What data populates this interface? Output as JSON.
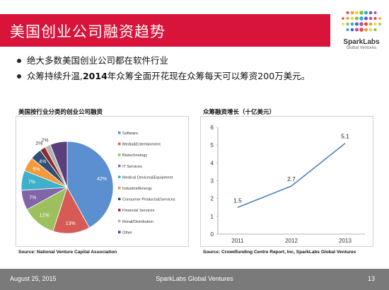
{
  "slide": {
    "title": "美国创业公司融资趋势",
    "logo": {
      "name": "SparkLabs",
      "sub": "Global Ventures",
      "icon": "sparklabs-dot-logo"
    },
    "bullets": [
      {
        "text": "绝大多数美国创业公司都在软件行业"
      },
      {
        "pre": "众筹持续升温,",
        "bold": "2014",
        "post": "年众筹全面开花现在众筹每天可以筹资200万美元。"
      }
    ],
    "footer": {
      "date": "August 25, 2015",
      "org": "SparkLabs Global Ventures",
      "page": "13"
    }
  },
  "chart_data": [
    {
      "type": "pie",
      "title": "美国按行业分类的创业公司融资",
      "source": "Source: National Venture Capital Association",
      "legend_position": "right",
      "slices": [
        {
          "name": "Software",
          "value": 42,
          "label": "42%",
          "color": "#5b8fcf"
        },
        {
          "name": "Media&Entertainment",
          "value": 13,
          "label": "13%",
          "color": "#d65a55"
        },
        {
          "name": "Biotechnology",
          "value": 12,
          "label": "12%",
          "color": "#9cc05e"
        },
        {
          "name": "IT Services",
          "value": 7,
          "label": "7%",
          "color": "#8066a9"
        },
        {
          "name": "Medical Devices&Equipment",
          "value": 7,
          "label": "7%",
          "color": "#3fb0c9"
        },
        {
          "name": "Industrial/Energy",
          "value": 5,
          "label": "5%",
          "color": "#f39a3d"
        },
        {
          "name": "Consumer Products&Services",
          "value": 4,
          "label": "4%",
          "color": "#2f4f78"
        },
        {
          "name": "Financial Services",
          "value": 2,
          "label": "2%",
          "color": "#8c2c2a"
        },
        {
          "name": "Retail/Distribution",
          "value": 2,
          "label": "2%",
          "color": "#b3b3b3"
        },
        {
          "name": "Other",
          "value": 6,
          "label": "",
          "color": "#5a3f7d"
        }
      ]
    },
    {
      "type": "line",
      "title": "众筹融资增长（十亿美元）",
      "source": "Source: Crowdfunding Centre Report, Inc, SparkLabs Global Ventures",
      "x": [
        "2011",
        "2012",
        "2013"
      ],
      "series": [
        {
          "values": [
            1.5,
            2.7,
            5.1
          ],
          "labels": [
            "1.5",
            "2.7",
            "5.1"
          ],
          "color": "#4f81bd"
        }
      ],
      "ylim": [
        0,
        6
      ],
      "yticks": [
        "0",
        "1",
        "2",
        "3",
        "4",
        "5",
        "6"
      ],
      "grid": false
    }
  ]
}
